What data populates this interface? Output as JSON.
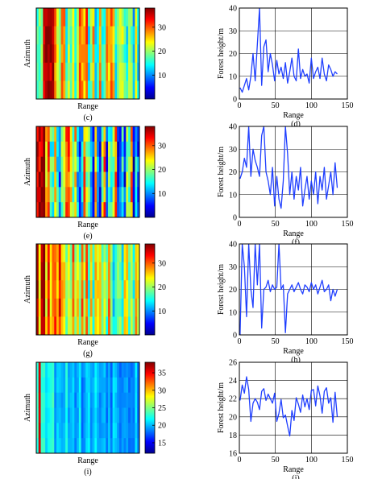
{
  "colormap_colors": [
    "#00008f",
    "#0000ff",
    "#0080ff",
    "#00ffff",
    "#80ff80",
    "#ffff00",
    "#ff8000",
    "#ff0000",
    "#800000"
  ],
  "line_color": "#1f3fff",
  "chart_data": [
    {
      "type": "heatmap",
      "label": "(c)",
      "xlabel": "Range",
      "ylabel": "Azimuth",
      "colorbar_ticks": [
        10,
        20,
        30
      ],
      "clim": [
        0,
        38
      ],
      "stripe_count": 46,
      "row_count": 5,
      "seed": 11,
      "level_profile": [
        22,
        24,
        25,
        24,
        23,
        22,
        22,
        21,
        21,
        20,
        19,
        19
      ],
      "noise": 9,
      "red_start": [
        3,
        8
      ],
      "red_min": 0
    },
    {
      "type": "line",
      "label": "(d)",
      "xlabel": "Range",
      "ylabel": "Forest height/m",
      "xlim": [
        0,
        150
      ],
      "ylim": [
        0,
        40
      ],
      "xticks": [
        0,
        50,
        100,
        150
      ],
      "yticks": [
        0,
        10,
        20,
        30,
        40
      ],
      "grid": true,
      "x_start": 1,
      "x_step": 3,
      "y": [
        5,
        3,
        6,
        9,
        4,
        10,
        20,
        8,
        24,
        40,
        6,
        23,
        26,
        12,
        20,
        15,
        8,
        17,
        11,
        14,
        9,
        16,
        7,
        12,
        18,
        10,
        8,
        22,
        9,
        13,
        10,
        11,
        7,
        18,
        9,
        12,
        14,
        9,
        18,
        11,
        8,
        15,
        13,
        10,
        12,
        11
      ]
    },
    {
      "type": "heatmap",
      "label": "(e)",
      "xlabel": "Range",
      "ylabel": "Azimuth",
      "colorbar_ticks": [
        10,
        20,
        30
      ],
      "clim": [
        0,
        38
      ],
      "stripe_count": 46,
      "row_count": 6,
      "seed": 23,
      "level_profile": [
        30,
        24,
        22,
        20,
        19,
        18,
        18,
        17,
        17,
        16,
        16,
        15
      ],
      "noise": 14,
      "red_start": [
        0,
        6
      ],
      "red_min": 0
    },
    {
      "type": "line",
      "label": "(f)",
      "xlabel": "Range",
      "ylabel": "Forest height/m",
      "xlim": [
        0,
        150
      ],
      "ylim": [
        0,
        40
      ],
      "xticks": [
        0,
        50,
        100,
        150
      ],
      "yticks": [
        0,
        10,
        20,
        30,
        40
      ],
      "grid": true,
      "x_start": 1,
      "x_step": 3,
      "y": [
        17,
        20,
        26,
        22,
        40,
        18,
        30,
        25,
        22,
        18,
        36,
        40,
        20,
        16,
        10,
        22,
        5,
        18,
        8,
        4,
        16,
        40,
        28,
        10,
        20,
        8,
        18,
        12,
        22,
        5,
        12,
        18,
        8,
        16,
        10,
        20,
        6,
        18,
        12,
        22,
        8,
        14,
        20,
        10,
        24,
        13
      ]
    },
    {
      "type": "heatmap",
      "label": "(g)",
      "xlabel": "Range",
      "ylabel": "Azimuth",
      "colorbar_ticks": [
        10,
        20,
        30
      ],
      "clim": [
        0,
        38
      ],
      "stripe_count": 46,
      "row_count": 5,
      "seed": 37,
      "level_profile": [
        32,
        30,
        27,
        25,
        23,
        22,
        22,
        21,
        21,
        20,
        20,
        19
      ],
      "noise": 8,
      "red_start": [
        0,
        4
      ],
      "red_min": 1
    },
    {
      "type": "line",
      "label": "(h)",
      "xlabel": "Range",
      "ylabel": "Forest height/m",
      "xlim": [
        0,
        150
      ],
      "ylim": [
        0,
        40
      ],
      "xticks": [
        0,
        50,
        100,
        150
      ],
      "yticks": [
        0,
        10,
        20,
        30,
        40
      ],
      "grid": true,
      "x_start": 1,
      "x_step": 3,
      "y": [
        0,
        40,
        30,
        8,
        40,
        20,
        12,
        40,
        22,
        40,
        3,
        20,
        21,
        24,
        19,
        22,
        20,
        21,
        40,
        20,
        22,
        1,
        18,
        20,
        22,
        19,
        21,
        23,
        20,
        18,
        22,
        21,
        19,
        23,
        20,
        22,
        18,
        21,
        24,
        19,
        20,
        22,
        15,
        20,
        17,
        20
      ]
    },
    {
      "type": "heatmap",
      "label": "(i)",
      "xlabel": "Range",
      "ylabel": "Azimuth",
      "colorbar_ticks": [
        15,
        20,
        25,
        30,
        35
      ],
      "clim": [
        12,
        38
      ],
      "stripe_count": 46,
      "row_count": 6,
      "seed": 53,
      "level_profile": [
        24,
        22,
        21,
        21,
        20,
        20,
        20,
        20,
        20,
        20,
        20,
        20
      ],
      "noise": 2,
      "red_start": [
        0,
        2
      ],
      "red_min": 1
    },
    {
      "type": "line",
      "label": "(j)",
      "xlabel": "Range",
      "ylabel": "Forest height/m",
      "xlim": [
        0,
        150
      ],
      "ylim": [
        16,
        26
      ],
      "xticks": [
        0,
        50,
        100,
        150
      ],
      "yticks": [
        16,
        18,
        20,
        22,
        24,
        26
      ],
      "grid": true,
      "x_start": 1,
      "x_step": 3,
      "y": [
        21.8,
        23.5,
        22.6,
        24.4,
        23.0,
        19.5,
        21.5,
        22.0,
        21.6,
        20.8,
        22.8,
        23.1,
        21.8,
        22.5,
        22.0,
        21.5,
        22.6,
        19.5,
        20.4,
        21.9,
        19.9,
        20.2,
        19.0,
        17.9,
        20.7,
        19.6,
        22.1,
        21.4,
        20.5,
        22.4,
        21.1,
        22.0,
        20.8,
        22.9,
        23.0,
        21.2,
        23.4,
        22.3,
        20.4,
        22.8,
        23.2,
        21.5,
        22.1,
        19.4,
        22.7,
        20.0
      ]
    }
  ]
}
